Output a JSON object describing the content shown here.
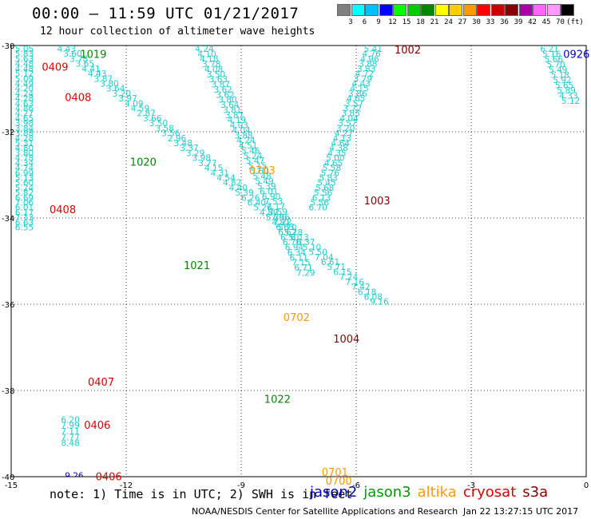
{
  "header": {
    "title": "00:00 – 11:59 UTC 01/21/2017",
    "subtitle": "12 hour collection of altimeter wave heights"
  },
  "colorbar": {
    "unit_label": "(ft)",
    "swatches": [
      {
        "color": "#808080",
        "label": "3"
      },
      {
        "color": "#00ffff",
        "label": "6"
      },
      {
        "color": "#00c0ff",
        "label": "9"
      },
      {
        "color": "#0000ff",
        "label": "12"
      },
      {
        "color": "#00ff00",
        "label": "15"
      },
      {
        "color": "#00cc00",
        "label": "18"
      },
      {
        "color": "#008800",
        "label": "21"
      },
      {
        "color": "#ffff00",
        "label": "24"
      },
      {
        "color": "#ffcc00",
        "label": "27"
      },
      {
        "color": "#ff9900",
        "label": "30"
      },
      {
        "color": "#ff0000",
        "label": "33"
      },
      {
        "color": "#cc0000",
        "label": "36"
      },
      {
        "color": "#880000",
        "label": "39"
      },
      {
        "color": "#aa00aa",
        "label": "42"
      },
      {
        "color": "#ff66ff",
        "label": "45"
      },
      {
        "color": "#ff99ff",
        "label": "70"
      },
      {
        "color": "#000000",
        "label": ""
      }
    ]
  },
  "axes": {
    "lon_ticks": [
      "-15",
      "-12",
      "-9",
      "-6",
      "-3",
      "0"
    ],
    "lat_ticks": [
      "-30",
      "-32",
      "-34",
      "-36",
      "-38",
      "-40"
    ]
  },
  "footer": {
    "notes": "note: 1) Time is in UTC; 2) SWH is in feet",
    "satellites": [
      {
        "name": "jason2",
        "color": "#0000cc"
      },
      {
        "name": "jason3",
        "color": "#009900"
      },
      {
        "name": "altika",
        "color": "#ff9900"
      },
      {
        "name": "cryosat",
        "color": "#dd0000"
      },
      {
        "name": "s3a",
        "color": "#880000"
      }
    ],
    "credit": "NOAA/NESDIS Center for Satellite Applications and Research",
    "stamp": "Jan 22 13:27:15 UTC 2017"
  },
  "chart_data": {
    "type": "scatter",
    "xlabel": "",
    "ylabel": "",
    "xlim": [
      -15,
      0
    ],
    "ylim": [
      -40,
      -30
    ],
    "time_labels": [
      {
        "text": "0409",
        "lon": -14.2,
        "lat": -30.4,
        "color": "#dd0000"
      },
      {
        "text": "1019",
        "lon": -13.2,
        "lat": -30.1,
        "color": "#008800"
      },
      {
        "text": "0408",
        "lon": -13.6,
        "lat": -31.1,
        "color": "#dd0000"
      },
      {
        "text": "1020",
        "lon": -11.9,
        "lat": -32.6,
        "color": "#008800"
      },
      {
        "text": "0408",
        "lon": -14.0,
        "lat": -33.7,
        "color": "#dd0000"
      },
      {
        "text": "1021",
        "lon": -10.5,
        "lat": -35.0,
        "color": "#008800"
      },
      {
        "text": "0703",
        "lon": -8.8,
        "lat": -32.8,
        "color": "#ff9900"
      },
      {
        "text": "0702",
        "lon": -7.9,
        "lat": -36.2,
        "color": "#ff9900"
      },
      {
        "text": "1002",
        "lon": -5.0,
        "lat": -30.0,
        "color": "#880000"
      },
      {
        "text": "1003",
        "lon": -5.8,
        "lat": -33.5,
        "color": "#880000"
      },
      {
        "text": "1004",
        "lon": -6.6,
        "lat": -36.7,
        "color": "#880000"
      },
      {
        "text": "0407",
        "lon": -13.0,
        "lat": -37.7,
        "color": "#dd0000"
      },
      {
        "text": "0406",
        "lon": -13.1,
        "lat": -38.7,
        "color": "#dd0000"
      },
      {
        "text": "0406",
        "lon": -12.8,
        "lat": -39.9,
        "color": "#dd0000"
      },
      {
        "text": "1022",
        "lon": -8.4,
        "lat": -38.1,
        "color": "#008800"
      },
      {
        "text": "0701",
        "lon": -6.9,
        "lat": -39.8,
        "color": "#ff9900"
      },
      {
        "text": "0700",
        "lon": -6.8,
        "lat": -40.0,
        "color": "#ff9900"
      },
      {
        "text": "0926",
        "lon": -0.6,
        "lat": -30.1,
        "color": "#0000cc"
      }
    ],
    "tracks": [
      {
        "name": "",
        "color": "#22cccc",
        "lon_start": -14.9,
        "lat_start": -30.0,
        "lon_step": 0.0,
        "lat_step": 0.115,
        "values": [
          "5.05",
          "5.83",
          "5.63",
          "4.48",
          "4.48",
          "5.12",
          "5.09",
          "4.49",
          "4.20",
          "4.24",
          "4.28",
          "4.63",
          "4.86",
          "4.27",
          "4.65",
          "3.98",
          "3.84",
          "3.88",
          "4.28",
          "5.31",
          "4.80",
          "3.80",
          "4.78",
          "4.34",
          "4.74",
          "6.99",
          "5.13",
          "5.60",
          "5.24",
          "5.82",
          "6.69",
          "7.06",
          "6.01",
          "6.17",
          "7.13",
          "6.63",
          "6.55"
        ]
      },
      {
        "name": "",
        "color": "#22cccc",
        "lon_start": -13.7,
        "lat_start": -38.6,
        "lon_step": 0.0,
        "lat_step": 0.135,
        "values": [
          "6.20",
          "7.99",
          "7.11",
          "7.77",
          "8.48"
        ]
      },
      {
        "name": "",
        "color": "#22cccc",
        "lon_start": -13.8,
        "lat_start": -30.0,
        "lon_step": 0.16,
        "lat_step": 0.115,
        "values": [
          "4.43",
          "3.60",
          "3.78",
          "3.65",
          "4.41",
          "4.43",
          "3.87",
          "3.80",
          "3.64",
          "3.20",
          "3.97",
          "4.09",
          "4.59",
          "2.87",
          "3.66",
          "3.50",
          "3.58",
          "3.56",
          "2.96",
          "3.48",
          "3.37",
          "3.29",
          "3.98",
          "3.77",
          "4.15",
          "4.31",
          "4.54",
          "4.82",
          "4.40",
          "5.39",
          "6.26",
          "6.40",
          "5.26",
          "4.89",
          "5.39",
          "4.81",
          "5.70",
          "5.78",
          "6.13",
          "6.37",
          "5.10",
          "5.50",
          "7.04",
          "6.61",
          "5.71",
          "6.15",
          "7.24",
          "7.16",
          "7.42",
          "6.18",
          "6.08",
          "9.16"
        ]
      },
      {
        "name": "",
        "color": "#22cccc",
        "lon_start": -10.2,
        "lat_start": -30.0,
        "lon_step": 0.06,
        "lat_step": 0.118,
        "values": [
          "4.24",
          "4.10",
          "4.18",
          "3.78",
          "4.08",
          "3.50",
          "3.63",
          "3.87",
          "3.62",
          "3.62",
          "3.80",
          "3.64",
          "3.81",
          "3.87",
          "4.19",
          "4.03",
          "4.04",
          "3.88",
          "4.24",
          "4.51",
          "5.46",
          "5.24",
          "5.47",
          "5.15",
          "5.60",
          "5.48",
          "5.49",
          "5.39",
          "6.01",
          "6.90",
          "7.53",
          "7.17",
          "7.59",
          "7.56",
          "7.22",
          "6.63",
          "6.62",
          "6.50",
          "6.70",
          "6.94",
          "6.34",
          "6.11",
          "7.15",
          "6.71",
          "7.29"
        ]
      },
      {
        "name": "",
        "color": "#22cccc",
        "lon_start": -5.8,
        "lat_start": -30.0,
        "lon_step": -0.045,
        "lat_step": 0.115,
        "values": [
          "5.41",
          "4.76",
          "4.96",
          "3.88",
          "3.83",
          "4.72",
          "3.79",
          "4.43",
          "4.15",
          "3.86",
          "4.65",
          "3.57",
          "3.72",
          "3.85",
          "4.04",
          "3.57",
          "3.20",
          "4.27",
          "4.13",
          "4.64",
          "4.38",
          "4.35",
          "5.00",
          "4.65",
          "5.58",
          "5.76",
          "5.83",
          "5.45",
          "5.68",
          "5.56",
          "6.13",
          "5.56",
          "6.70"
        ]
      },
      {
        "name": "",
        "color": "#22cccc",
        "lon_start": -1.2,
        "lat_start": -30.0,
        "lon_step": 0.055,
        "lat_step": 0.12,
        "values": [
          "6.21",
          "5.16",
          "5.66",
          "5.70",
          "5.49",
          "5.18",
          "5.92",
          "5.65",
          "5.89",
          "4.33",
          "5.12"
        ]
      },
      {
        "name": "",
        "color": "#0000cc",
        "lon_start": -13.6,
        "lat_start": -39.9,
        "lon_step": 0,
        "lat_step": 0,
        "values": [
          "9.26"
        ]
      }
    ]
  }
}
